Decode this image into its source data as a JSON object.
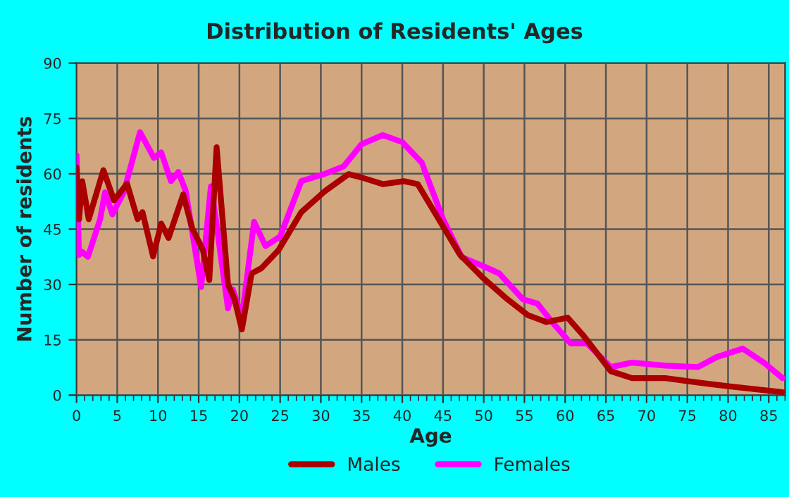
{
  "chart_data": {
    "type": "line",
    "title": "Distribution of Residents' Ages",
    "xlabel": "Age",
    "ylabel": "Number of residents",
    "xlim": [
      0,
      87
    ],
    "xticks": [
      0,
      5,
      10,
      15,
      20,
      25,
      30,
      35,
      40,
      45,
      50,
      55,
      60,
      65,
      70,
      75,
      80,
      85
    ],
    "ylim": [
      0,
      90
    ],
    "yticks": [
      0,
      15,
      30,
      45,
      60,
      75,
      90
    ],
    "grid": true,
    "legend": "bottom",
    "line_style": "solid",
    "marker": "none",
    "series": [
      {
        "name": "Males",
        "color": "#aa0000",
        "x": [
          0,
          0.3,
          0.7,
          1.5,
          3.3,
          4.6,
          6.2,
          7.5,
          8.1,
          9.4,
          10.4,
          11.3,
          13.1,
          14.2,
          15.5,
          16.3,
          17.2,
          18.6,
          19.4,
          20.3,
          21.5,
          22.7,
          24.8,
          27.6,
          30.5,
          33.4,
          35,
          37.6,
          40.2,
          41.9,
          44.8,
          47.1,
          50,
          52.9,
          55.4,
          57.7,
          60.3,
          62.3,
          65.6,
          68.2,
          72.3,
          76.3,
          80.4,
          86.7
        ],
        "values": [
          61.7,
          47.7,
          58,
          47.7,
          61,
          52.8,
          57.3,
          47.7,
          49.6,
          37.6,
          46.5,
          42.6,
          54.4,
          45.2,
          39.5,
          31.2,
          67.2,
          30,
          26,
          17.8,
          33,
          34.4,
          39.3,
          49.6,
          55.3,
          59.9,
          59,
          57.2,
          58,
          57.2,
          46.5,
          38,
          31.6,
          26,
          21.7,
          19.8,
          21,
          16,
          6.5,
          4.6,
          4.6,
          3.4,
          2.3,
          0.8
        ]
      },
      {
        "name": "Females",
        "color": "#ff00ff",
        "x": [
          0,
          0.3,
          0.7,
          1.4,
          2.9,
          3.5,
          4.4,
          5.8,
          7.8,
          9.5,
          10.4,
          11.6,
          12.5,
          13.4,
          15.3,
          16.5,
          17.1,
          18.6,
          19.2,
          20.3,
          21.8,
          23.2,
          25,
          27.6,
          30.5,
          32.8,
          35,
          37.6,
          40,
          42.4,
          45,
          47.3,
          49.9,
          51.9,
          54.8,
          56.6,
          58.4,
          60.7,
          62.7,
          65.6,
          68.2,
          72.3,
          76.3,
          78.6,
          81.8,
          84.4,
          86.7
        ],
        "values": [
          65,
          38,
          38.8,
          37.5,
          47.7,
          55,
          49,
          55,
          71.3,
          64.3,
          65.8,
          58,
          60.5,
          55.4,
          29.3,
          56.6,
          47.7,
          23.5,
          28.6,
          21,
          47,
          40.4,
          43,
          58,
          60,
          62,
          68,
          70.5,
          68.6,
          63,
          47.7,
          37.4,
          35,
          33,
          26,
          24.8,
          19.8,
          14,
          14,
          7.6,
          8.8,
          8,
          7.6,
          10.3,
          12.6,
          8.8,
          4.6
        ]
      }
    ]
  }
}
